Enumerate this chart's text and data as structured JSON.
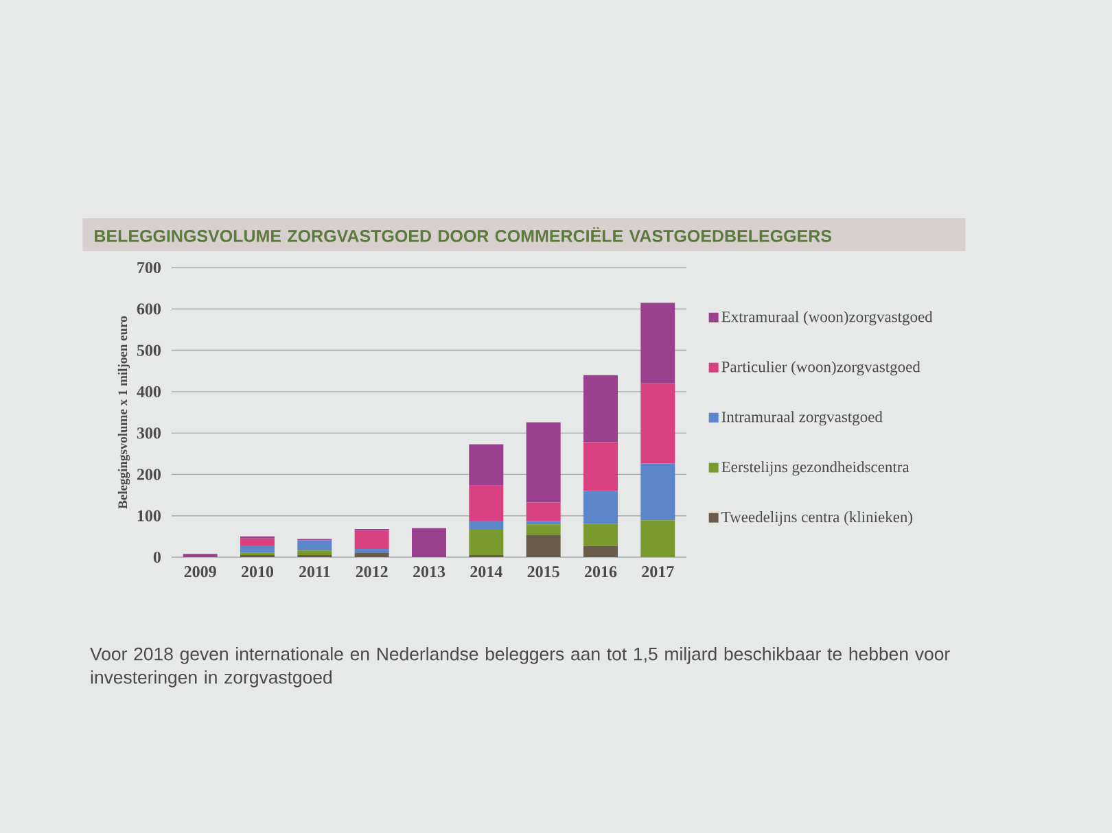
{
  "chart_data": {
    "type": "bar",
    "stacked": true,
    "title": "BELEGGINGSVOLUME ZORGVASTGOED DOOR COMMERCIËLE VASTGOEDBELEGGERS",
    "ylabel": "Beleggingsvolume x 1 miljoen euro",
    "categories": [
      "2009",
      "2010",
      "2011",
      "2012",
      "2013",
      "2014",
      "2015",
      "2016",
      "2017"
    ],
    "series": [
      {
        "name": "Tweedelijns centra (klinieken)",
        "color": "#6b5b4b",
        "values": [
          0,
          5,
          5,
          10,
          0,
          5,
          53,
          27,
          0
        ]
      },
      {
        "name": "Eerstelijns gezondheidscentra",
        "color": "#7a9a2e",
        "values": [
          0,
          6,
          11,
          0,
          0,
          63,
          26,
          53,
          89
        ]
      },
      {
        "name": "Intramuraal zorgvastgoed",
        "color": "#5b86c9",
        "values": [
          0,
          17,
          25,
          10,
          0,
          20,
          8,
          80,
          138
        ]
      },
      {
        "name": "Particulier (woon)zorgvastgoed",
        "color": "#d8407f",
        "values": [
          0,
          17,
          0,
          44,
          0,
          85,
          45,
          118,
          193
        ]
      },
      {
        "name": "Extramuraal (woon)zorgvastgoed",
        "color": "#9b3f8f",
        "values": [
          8,
          5,
          3,
          4,
          70,
          100,
          194,
          162,
          195
        ]
      }
    ],
    "ylim": [
      0,
      700
    ],
    "yticks": [
      0,
      100,
      200,
      300,
      400,
      500,
      600,
      700
    ],
    "grid": "y",
    "legend": "right",
    "annotations": [
      "Voor 2018 geven internationale en Nederlandse beleggers aan tot 1,5 miljard beschikbaar te hebben voor investeringen in zorgvastgoed"
    ]
  }
}
